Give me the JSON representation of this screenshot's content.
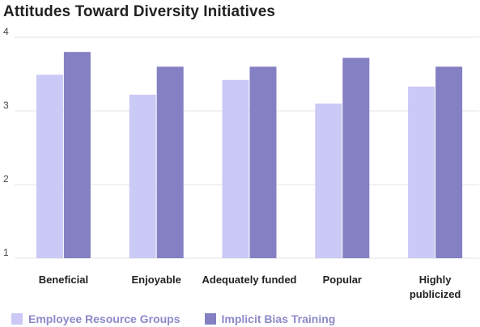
{
  "chart_data": {
    "type": "bar",
    "title": "Attitudes Toward Diversity Initiatives",
    "xlabel": "",
    "ylabel": "",
    "categories": [
      "Beneficial",
      "Enjoyable",
      "Adequately funded",
      "Popular",
      "Highly publicized"
    ],
    "series": [
      {
        "name": "Employee Resource Groups",
        "color": "#cbc9f5",
        "values": [
          3.49,
          3.22,
          3.42,
          3.1,
          3.33
        ]
      },
      {
        "name": "Implicit Bias Training",
        "color": "#8480c3",
        "values": [
          3.8,
          3.6,
          3.6,
          3.72,
          3.6
        ]
      }
    ],
    "ylim": [
      1,
      4
    ],
    "yticks": [
      1,
      2,
      3,
      4
    ],
    "grid": true,
    "legend": "bottom-left"
  }
}
